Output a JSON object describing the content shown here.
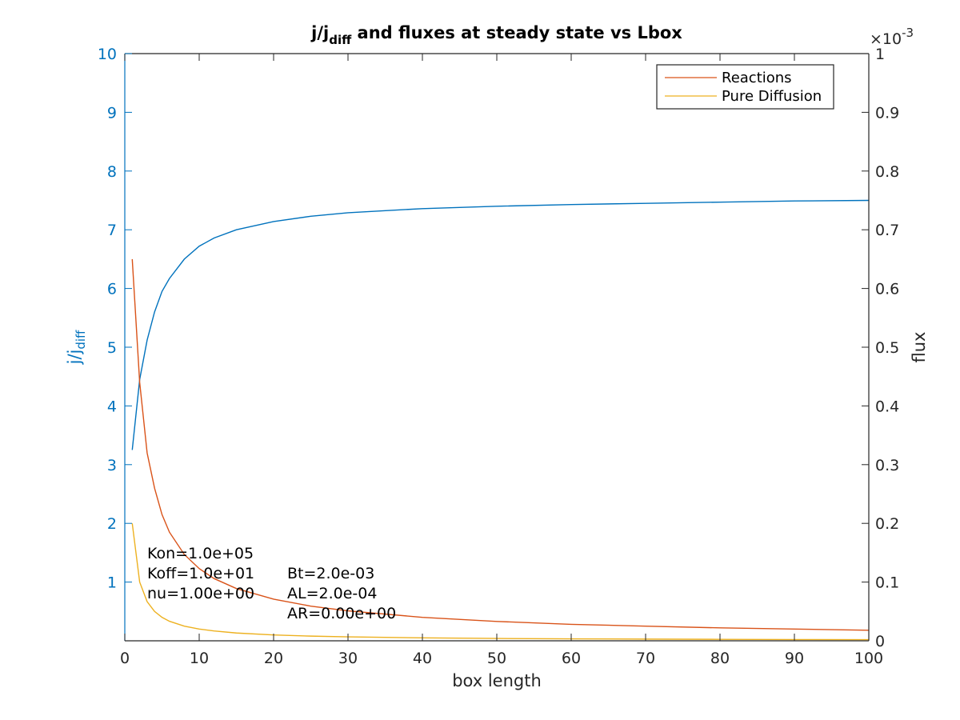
{
  "chart_data": {
    "type": "line",
    "title_main": "j/j",
    "title_sub": "diff",
    "title_rest": " and fluxes at steady state vs Lbox",
    "xlabel": "box length",
    "ylabel_left_main": "j/j",
    "ylabel_left_sub": "diff",
    "ylabel_right": "flux",
    "right_exponent_base": "×10",
    "right_exponent_power": "-3",
    "xlim": [
      0,
      100
    ],
    "ylim_left": [
      0,
      10
    ],
    "ylim_right": [
      0,
      0.001
    ],
    "x_ticks": [
      "0",
      "10",
      "20",
      "30",
      "40",
      "50",
      "60",
      "70",
      "80",
      "90",
      "100"
    ],
    "y_left_ticks": [
      "1",
      "2",
      "3",
      "4",
      "5",
      "6",
      "7",
      "8",
      "9",
      "10"
    ],
    "y_right_ticks": [
      "0",
      "0.1",
      "0.2",
      "0.3",
      "0.4",
      "0.5",
      "0.6",
      "0.7",
      "0.8",
      "0.9",
      "1"
    ],
    "legend_position": "top-right",
    "grid": false,
    "series": [
      {
        "axis": "left",
        "color": "#0072BD",
        "x": [
          1,
          2,
          3,
          4,
          5,
          6,
          8,
          10,
          12,
          15,
          20,
          25,
          30,
          40,
          50,
          60,
          70,
          80,
          90,
          100
        ],
        "y": [
          3.25,
          4.45,
          5.12,
          5.6,
          5.95,
          6.17,
          6.5,
          6.72,
          6.86,
          7.0,
          7.14,
          7.23,
          7.29,
          7.36,
          7.4,
          7.43,
          7.45,
          7.47,
          7.49,
          7.5
        ]
      },
      {
        "axis": "right",
        "name": "Reactions",
        "color": "#D95319",
        "x": [
          1,
          2,
          3,
          4,
          5,
          6,
          8,
          10,
          12,
          15,
          20,
          25,
          30,
          40,
          50,
          60,
          70,
          80,
          90,
          100
        ],
        "y": [
          0.00065,
          0.00044,
          0.00032,
          0.00026,
          0.000215,
          0.000185,
          0.000147,
          0.000123,
          0.000106,
          8.9e-05,
          7.1e-05,
          5.9e-05,
          5.1e-05,
          4e-05,
          3.3e-05,
          2.8e-05,
          2.5e-05,
          2.2e-05,
          2e-05,
          1.8e-05
        ]
      },
      {
        "axis": "right",
        "name": "Pure Diffusion",
        "color": "#EDB120",
        "x": [
          1,
          2,
          3,
          4,
          5,
          6,
          8,
          10,
          12,
          15,
          20,
          25,
          30,
          40,
          50,
          60,
          70,
          80,
          90,
          100
        ],
        "y": [
          0.0002,
          0.0001,
          6.67e-05,
          5e-05,
          4e-05,
          3.33e-05,
          2.5e-05,
          2e-05,
          1.67e-05,
          1.33e-05,
          1e-05,
          8e-06,
          6.7e-06,
          5e-06,
          4e-06,
          3.3e-06,
          2.9e-06,
          2.5e-06,
          2.2e-06,
          2e-06
        ]
      }
    ],
    "annotations": [
      "Kon=1.0e+05",
      "Koff=1.0e+01",
      "nu=1.00e+00",
      "Bt=2.0e-03",
      "AL=2.0e-04",
      "AR=0.00e+00"
    ]
  }
}
